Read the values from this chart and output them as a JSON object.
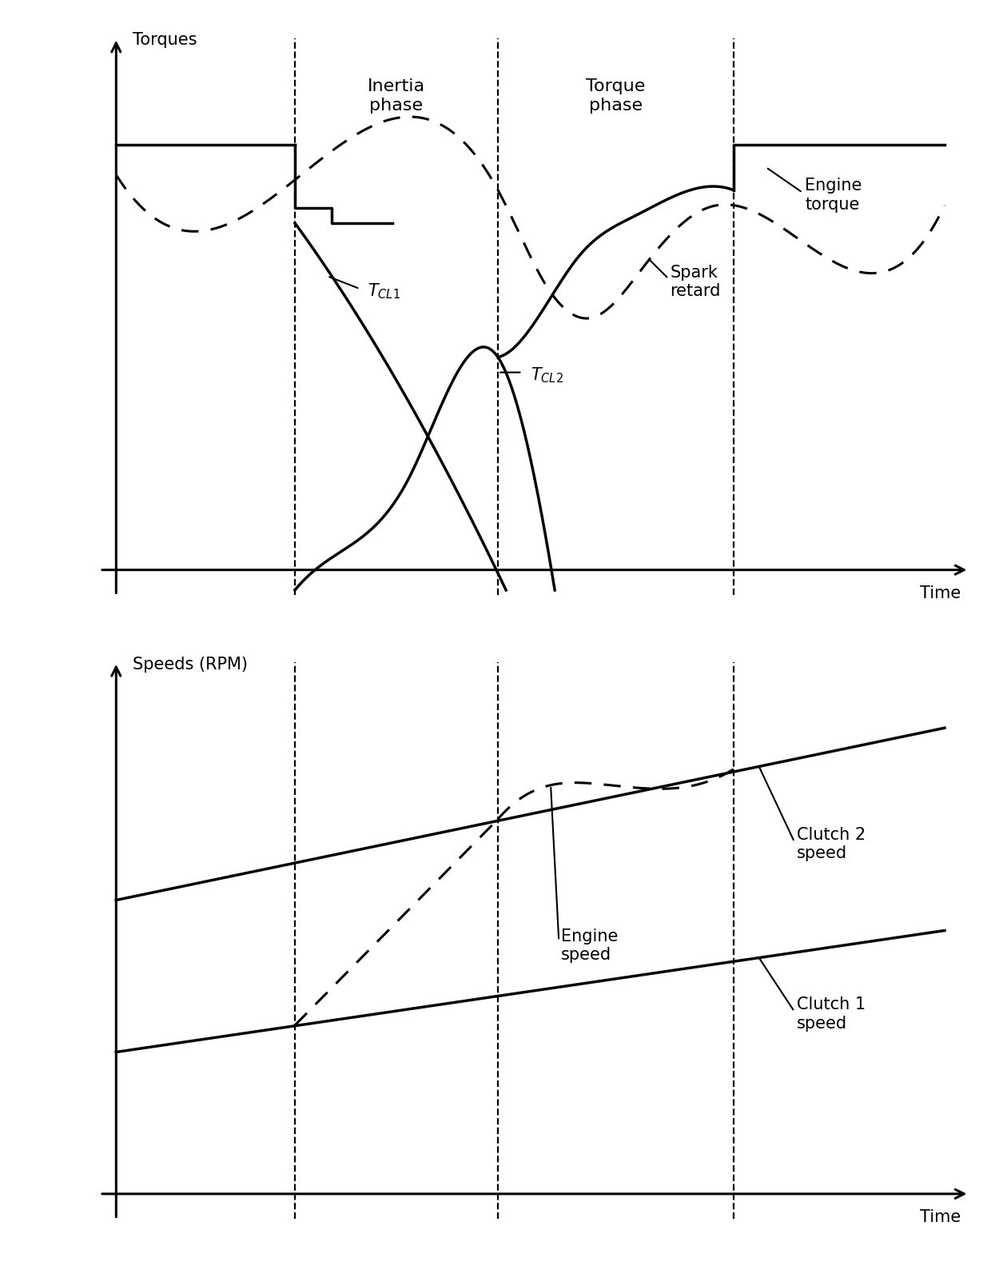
{
  "fig_width": 12.5,
  "fig_height": 15.88,
  "dpi": 100,
  "background_color": "#ffffff",
  "line_color": "#000000",
  "vline_positions": [
    0.22,
    0.47,
    0.76
  ],
  "top_ylabel": "Torques",
  "top_xlabel": "Time",
  "bottom_ylabel": "Speeds (RPM)",
  "bottom_xlabel": "Time",
  "inertia_phase_label": "Inertia\nphase",
  "torque_phase_label": "Torque\nphase",
  "font_size_labels": 15,
  "font_size_phase": 16,
  "font_size_axis": 15
}
